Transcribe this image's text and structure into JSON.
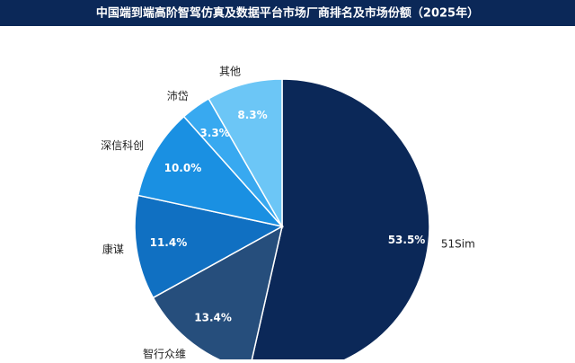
{
  "chart_data": {
    "type": "pie",
    "title": "中国端到端高阶智驾仿真及数据平台市场厂商排名及市场份额（2025年）",
    "categories": [
      "51Sim",
      "智行众维",
      "康谋",
      "深信科创",
      "沛岱",
      "其他"
    ],
    "values": [
      53.5,
      13.4,
      11.4,
      10.0,
      3.3,
      8.3
    ],
    "value_labels": [
      "53.5%",
      "13.4%",
      "11.4%",
      "10.0%",
      "3.3%",
      "8.3%"
    ],
    "colors": [
      "#0b2858",
      "#264e7c",
      "#1070c2",
      "#1a90e2",
      "#38a9f0",
      "#6cc6f6"
    ]
  }
}
